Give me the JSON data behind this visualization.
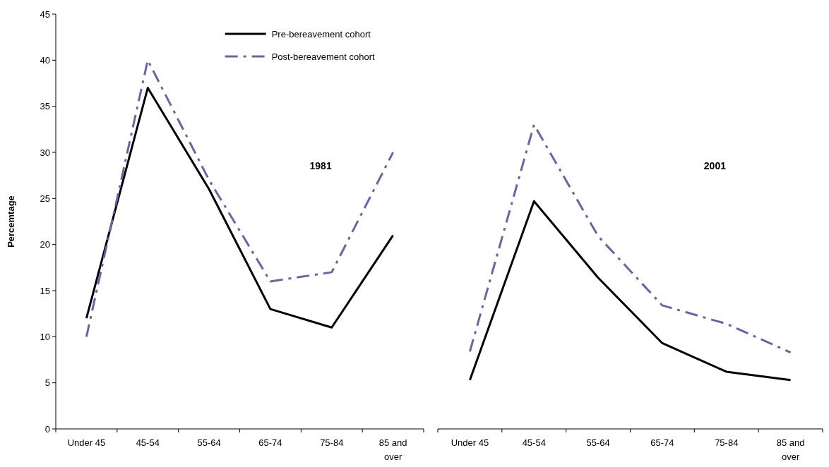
{
  "chart_data": [
    {
      "type": "line",
      "title": "1981",
      "ylabel": "Percemtage",
      "categories": [
        "Under 45",
        "45-54",
        "55-64",
        "65-74",
        "75-84",
        "85 and over"
      ],
      "series": [
        {
          "name": "Pre-bereavement cohort",
          "color": "#000000",
          "line_style": "solid",
          "values": [
            12,
            37,
            26,
            13,
            11,
            21
          ]
        },
        {
          "name": "Post-bereavement cohort",
          "color": "#6666a3",
          "line_style": "dashed",
          "values": [
            10,
            40,
            27,
            16,
            17,
            30
          ]
        }
      ],
      "ylim": [
        0,
        45
      ],
      "yticks": [
        0,
        5,
        10,
        15,
        20,
        25,
        30,
        35,
        40,
        45
      ],
      "legend": "top right",
      "grid": false
    },
    {
      "type": "line",
      "title": "2001",
      "categories": [
        "Under 45",
        "45-54",
        "55-64",
        "65-74",
        "75-84",
        "85 and over"
      ],
      "series": [
        {
          "color": "#000000",
          "line_style": "solid",
          "values": [
            5.3,
            24.7,
            16.4,
            9.3,
            6.2,
            5.3
          ]
        },
        {
          "color": "#6666a3",
          "line_style": "dashed",
          "values": [
            8.4,
            33,
            20.9,
            13.4,
            11.4,
            8.3
          ]
        }
      ],
      "ylim": [
        0,
        45
      ],
      "yticks": [
        0,
        5,
        10,
        15,
        20,
        25,
        30,
        35,
        40,
        45
      ],
      "tick_labels": "x",
      "grid": false
    }
  ]
}
